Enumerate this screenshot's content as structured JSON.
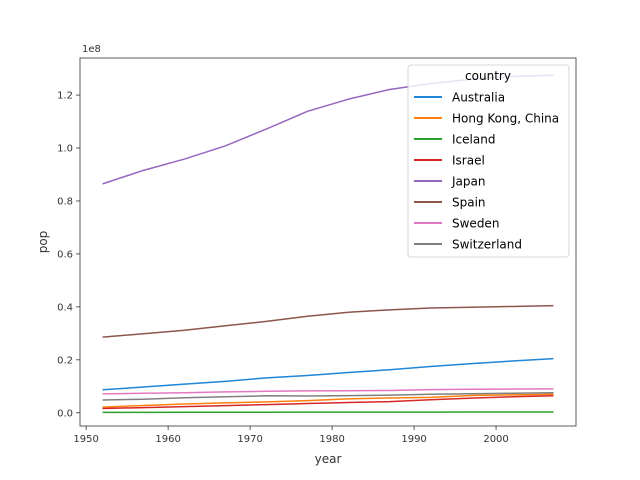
{
  "chart_data": {
    "type": "line",
    "xlabel": "year",
    "ylabel": "pop",
    "offset_label": "1e8",
    "xlim": [
      1949.25,
      2009.75
    ],
    "ylim": [
      -5000000,
      134000000
    ],
    "x_ticks": [
      1950,
      1960,
      1970,
      1980,
      1990,
      2000
    ],
    "y_ticks": [
      0,
      20000000,
      40000000,
      60000000,
      80000000,
      100000000,
      120000000
    ],
    "y_tick_labels": [
      "0.0",
      "0.2",
      "0.4",
      "0.6",
      "0.8",
      "1.0",
      "1.2"
    ],
    "grid": false,
    "legend": {
      "title": "country",
      "placement": "top-right"
    },
    "x": [
      1952,
      1957,
      1962,
      1967,
      1972,
      1977,
      1982,
      1987,
      1992,
      1997,
      2002,
      2007
    ],
    "series": [
      {
        "name": "Australia",
        "color": "#1f86d8",
        "values": [
          8691212,
          9712569,
          10794968,
          11872264,
          13177000,
          14074100,
          15184200,
          16257249,
          17481977,
          18565243,
          19546792,
          20434176
        ]
      },
      {
        "name": "Hong Kong, China",
        "color": "#ff7f0e",
        "values": [
          2125900,
          2736300,
          3305200,
          3722800,
          4115700,
          4583700,
          5264500,
          5584510,
          5829696,
          6495918,
          6762476,
          6980412
        ]
      },
      {
        "name": "Iceland",
        "color": "#2ca02c",
        "values": [
          147962,
          165110,
          182053,
          198676,
          209275,
          221823,
          233997,
          244676,
          259012,
          271192,
          288030,
          301931
        ]
      },
      {
        "name": "Israel",
        "color": "#d62728",
        "values": [
          1620914,
          1944401,
          2310904,
          2693585,
          3095893,
          3495918,
          3858421,
          4203148,
          4936550,
          5531387,
          6029529,
          6426679
        ]
      },
      {
        "name": "Japan",
        "color": "#9467bd",
        "values": [
          86459025,
          91563009,
          95831757,
          100825279,
          107188273,
          113872473,
          118454974,
          122091325,
          124329269,
          125956499,
          127065841,
          127467972
        ]
      },
      {
        "name": "Spain",
        "color": "#8c564b",
        "values": [
          28549870,
          29841614,
          31158061,
          32850275,
          34513161,
          36439000,
          37983310,
          38880702,
          39549438,
          39855442,
          40152517,
          40448191
        ]
      },
      {
        "name": "Sweden",
        "color": "#e377c2",
        "values": [
          7124673,
          7363802,
          7561588,
          7867931,
          8122293,
          8251648,
          8325260,
          8421403,
          8718867,
          8897619,
          8954175,
          9031088
        ]
      },
      {
        "name": "Switzerland",
        "color": "#7f7f7f",
        "values": [
          4815000,
          5126000,
          5666000,
          6063000,
          6401400,
          6316424,
          6468126,
          6649942,
          6995447,
          7193761,
          7361757,
          7554661
        ]
      }
    ]
  }
}
